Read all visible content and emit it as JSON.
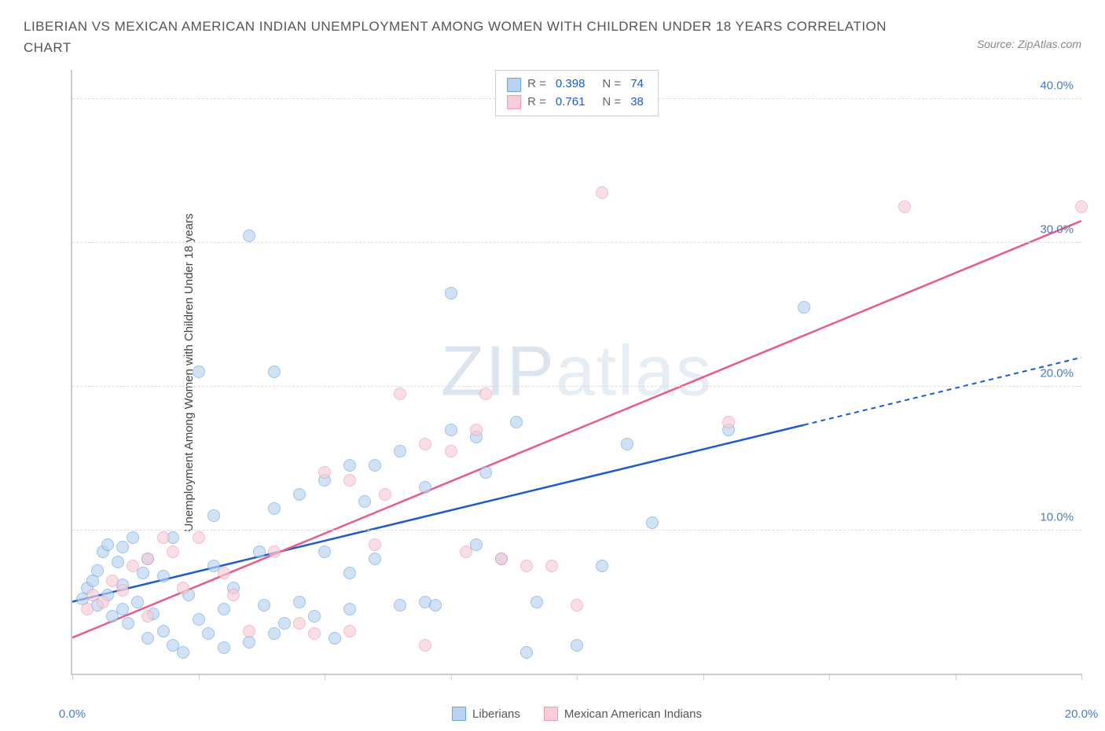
{
  "title": "LIBERIAN VS MEXICAN AMERICAN INDIAN UNEMPLOYMENT AMONG WOMEN WITH CHILDREN UNDER 18 YEARS CORRELATION CHART",
  "source": "Source: ZipAtlas.com",
  "chart": {
    "type": "scatter",
    "ylabel": "Unemployment Among Women with Children Under 18 years",
    "xlim": [
      0,
      20
    ],
    "ylim": [
      0,
      42
    ],
    "xticks": [
      0,
      2.5,
      5,
      7.5,
      10,
      12.5,
      15,
      17.5,
      20
    ],
    "xtick_labels": {
      "0": "0.0%",
      "20": "20.0%"
    },
    "yticks": [
      10,
      20,
      30,
      40
    ],
    "ytick_labels": [
      "10.0%",
      "20.0%",
      "30.0%",
      "40.0%"
    ],
    "grid_color": "#dddddd",
    "axis_color": "#cccccc",
    "tick_label_color": "#4a7ac0",
    "background": "#ffffff",
    "watermark": {
      "bold": "ZIP",
      "thin": "atlas"
    },
    "series": [
      {
        "name": "Liberians",
        "color_fill": "#b9d3f0",
        "color_stroke": "#6aa2de",
        "reg_color": "#1b5bcc",
        "R": "0.398",
        "N": "74",
        "regression": {
          "x1": 0,
          "y1": 5.0,
          "x2_solid": 14.5,
          "y2_solid": 17.3,
          "x2": 20,
          "y2": 22.0
        },
        "points": [
          [
            0.2,
            5.2
          ],
          [
            0.3,
            6.0
          ],
          [
            0.4,
            6.5
          ],
          [
            0.5,
            4.8
          ],
          [
            0.5,
            7.2
          ],
          [
            0.6,
            8.5
          ],
          [
            0.7,
            5.5
          ],
          [
            0.7,
            9.0
          ],
          [
            0.8,
            4.0
          ],
          [
            0.9,
            7.8
          ],
          [
            1.0,
            6.2
          ],
          [
            1.0,
            8.8
          ],
          [
            1.1,
            3.5
          ],
          [
            1.2,
            9.5
          ],
          [
            1.3,
            5.0
          ],
          [
            1.4,
            7.0
          ],
          [
            1.5,
            2.5
          ],
          [
            1.5,
            8.0
          ],
          [
            1.6,
            4.2
          ],
          [
            1.8,
            6.8
          ],
          [
            1.8,
            3.0
          ],
          [
            2.0,
            2.0
          ],
          [
            2.0,
            9.5
          ],
          [
            2.2,
            1.5
          ],
          [
            2.3,
            5.5
          ],
          [
            2.5,
            3.8
          ],
          [
            2.5,
            21.0
          ],
          [
            2.7,
            2.8
          ],
          [
            2.8,
            7.5
          ],
          [
            3.0,
            4.5
          ],
          [
            3.0,
            1.8
          ],
          [
            3.2,
            6.0
          ],
          [
            3.5,
            30.5
          ],
          [
            3.5,
            2.2
          ],
          [
            3.7,
            8.5
          ],
          [
            3.8,
            4.8
          ],
          [
            4.0,
            11.5
          ],
          [
            4.0,
            21.0
          ],
          [
            4.2,
            3.5
          ],
          [
            4.5,
            5.0
          ],
          [
            4.5,
            12.5
          ],
          [
            4.8,
            4.0
          ],
          [
            5.0,
            8.5
          ],
          [
            5.0,
            13.5
          ],
          [
            5.2,
            2.5
          ],
          [
            5.5,
            14.5
          ],
          [
            5.5,
            4.5
          ],
          [
            5.8,
            12.0
          ],
          [
            6.0,
            8.0
          ],
          [
            6.0,
            14.5
          ],
          [
            6.5,
            15.5
          ],
          [
            6.5,
            4.8
          ],
          [
            7.0,
            13.0
          ],
          [
            7.0,
            5.0
          ],
          [
            7.2,
            4.8
          ],
          [
            7.5,
            26.5
          ],
          [
            7.5,
            17.0
          ],
          [
            8.0,
            9.0
          ],
          [
            8.0,
            16.5
          ],
          [
            8.2,
            14.0
          ],
          [
            8.5,
            8.0
          ],
          [
            8.8,
            17.5
          ],
          [
            9.0,
            1.5
          ],
          [
            9.2,
            5.0
          ],
          [
            10.0,
            2.0
          ],
          [
            10.5,
            7.5
          ],
          [
            11.0,
            16.0
          ],
          [
            11.5,
            10.5
          ],
          [
            13.0,
            17.0
          ],
          [
            14.5,
            25.5
          ],
          [
            1.0,
            4.5
          ],
          [
            2.8,
            11.0
          ],
          [
            4.0,
            2.8
          ],
          [
            5.5,
            7.0
          ]
        ]
      },
      {
        "name": "Mexican American Indians",
        "color_fill": "#f7cdd8",
        "color_stroke": "#eb9ab2",
        "reg_color": "#e85a8a",
        "R": "0.761",
        "N": "38",
        "regression": {
          "x1": 0,
          "y1": 2.5,
          "x2_solid": 20,
          "y2_solid": 31.5,
          "x2": 20,
          "y2": 31.5
        },
        "points": [
          [
            0.3,
            4.5
          ],
          [
            0.4,
            5.5
          ],
          [
            0.6,
            5.0
          ],
          [
            0.8,
            6.5
          ],
          [
            1.0,
            5.8
          ],
          [
            1.2,
            7.5
          ],
          [
            1.5,
            8.0
          ],
          [
            1.8,
            9.5
          ],
          [
            2.0,
            8.5
          ],
          [
            2.2,
            6.0
          ],
          [
            2.5,
            9.5
          ],
          [
            3.0,
            7.0
          ],
          [
            3.5,
            3.0
          ],
          [
            4.0,
            8.5
          ],
          [
            4.5,
            3.5
          ],
          [
            4.8,
            2.8
          ],
          [
            5.0,
            14.0
          ],
          [
            5.5,
            13.5
          ],
          [
            5.5,
            3.0
          ],
          [
            6.0,
            9.0
          ],
          [
            6.5,
            19.5
          ],
          [
            7.0,
            2.0
          ],
          [
            7.0,
            16.0
          ],
          [
            7.5,
            15.5
          ],
          [
            7.8,
            8.5
          ],
          [
            8.0,
            17.0
          ],
          [
            8.2,
            19.5
          ],
          [
            8.5,
            8.0
          ],
          [
            9.0,
            7.5
          ],
          [
            9.5,
            7.5
          ],
          [
            10.0,
            4.8
          ],
          [
            10.5,
            33.5
          ],
          [
            13.0,
            17.5
          ],
          [
            16.5,
            32.5
          ],
          [
            20.0,
            32.5
          ],
          [
            1.5,
            4.0
          ],
          [
            3.2,
            5.5
          ],
          [
            6.2,
            12.5
          ]
        ]
      }
    ],
    "bottom_legend": [
      {
        "label": "Liberians",
        "fill": "#b9d3f0",
        "stroke": "#6aa2de"
      },
      {
        "label": "Mexican American Indians",
        "fill": "#f7cdd8",
        "stroke": "#eb9ab2"
      }
    ]
  }
}
